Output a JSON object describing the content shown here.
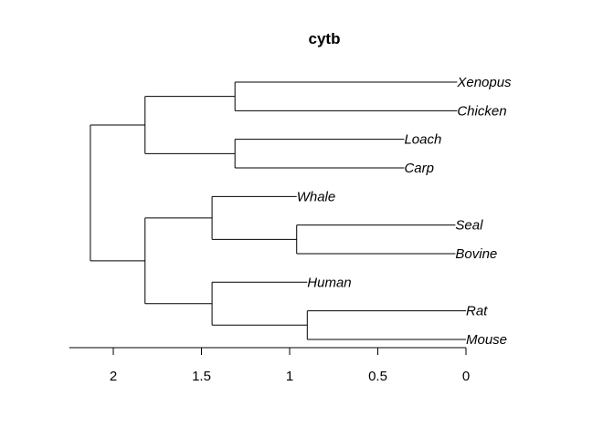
{
  "title": "cytb",
  "chart_data": {
    "type": "dendrogram",
    "title": "cytb",
    "orientation": "horizontal",
    "xlim": [
      2.25,
      0
    ],
    "ticks": [
      {
        "value": 2,
        "label": "2"
      },
      {
        "value": 1.5,
        "label": "1.5"
      },
      {
        "value": 1,
        "label": "1"
      },
      {
        "value": 0.5,
        "label": "0.5"
      },
      {
        "value": 0,
        "label": "0"
      }
    ],
    "leaves": [
      {
        "id": "xenopus",
        "label": "Xenopus",
        "height": 0.05
      },
      {
        "id": "chicken",
        "label": "Chicken",
        "height": 0.05
      },
      {
        "id": "loach",
        "label": "Loach",
        "height": 0.35
      },
      {
        "id": "carp",
        "label": "Carp",
        "height": 0.35
      },
      {
        "id": "whale",
        "label": "Whale",
        "height": 0.96
      },
      {
        "id": "seal",
        "label": "Seal",
        "height": 0.06
      },
      {
        "id": "bovine",
        "label": "Bovine",
        "height": 0.06
      },
      {
        "id": "human",
        "label": "Human",
        "height": 0.9
      },
      {
        "id": "rat",
        "label": "Rat",
        "height": 0.0
      },
      {
        "id": "mouse",
        "label": "Mouse",
        "height": 0.0
      }
    ],
    "merges": [
      {
        "id": "n1",
        "children": [
          "xenopus",
          "chicken"
        ],
        "height": 1.31
      },
      {
        "id": "n2",
        "children": [
          "loach",
          "carp"
        ],
        "height": 1.31
      },
      {
        "id": "n3",
        "children": [
          "n1",
          "n2"
        ],
        "height": 1.82
      },
      {
        "id": "n4",
        "children": [
          "seal",
          "bovine"
        ],
        "height": 0.96
      },
      {
        "id": "n5",
        "children": [
          "whale",
          "n4"
        ],
        "height": 1.44
      },
      {
        "id": "n6",
        "children": [
          "rat",
          "mouse"
        ],
        "height": 0.9
      },
      {
        "id": "n7",
        "children": [
          "human",
          "n6"
        ],
        "height": 1.44
      },
      {
        "id": "n8",
        "children": [
          "n5",
          "n7"
        ],
        "height": 1.82
      },
      {
        "id": "root",
        "children": [
          "n3",
          "n8"
        ],
        "height": 2.13
      }
    ]
  }
}
